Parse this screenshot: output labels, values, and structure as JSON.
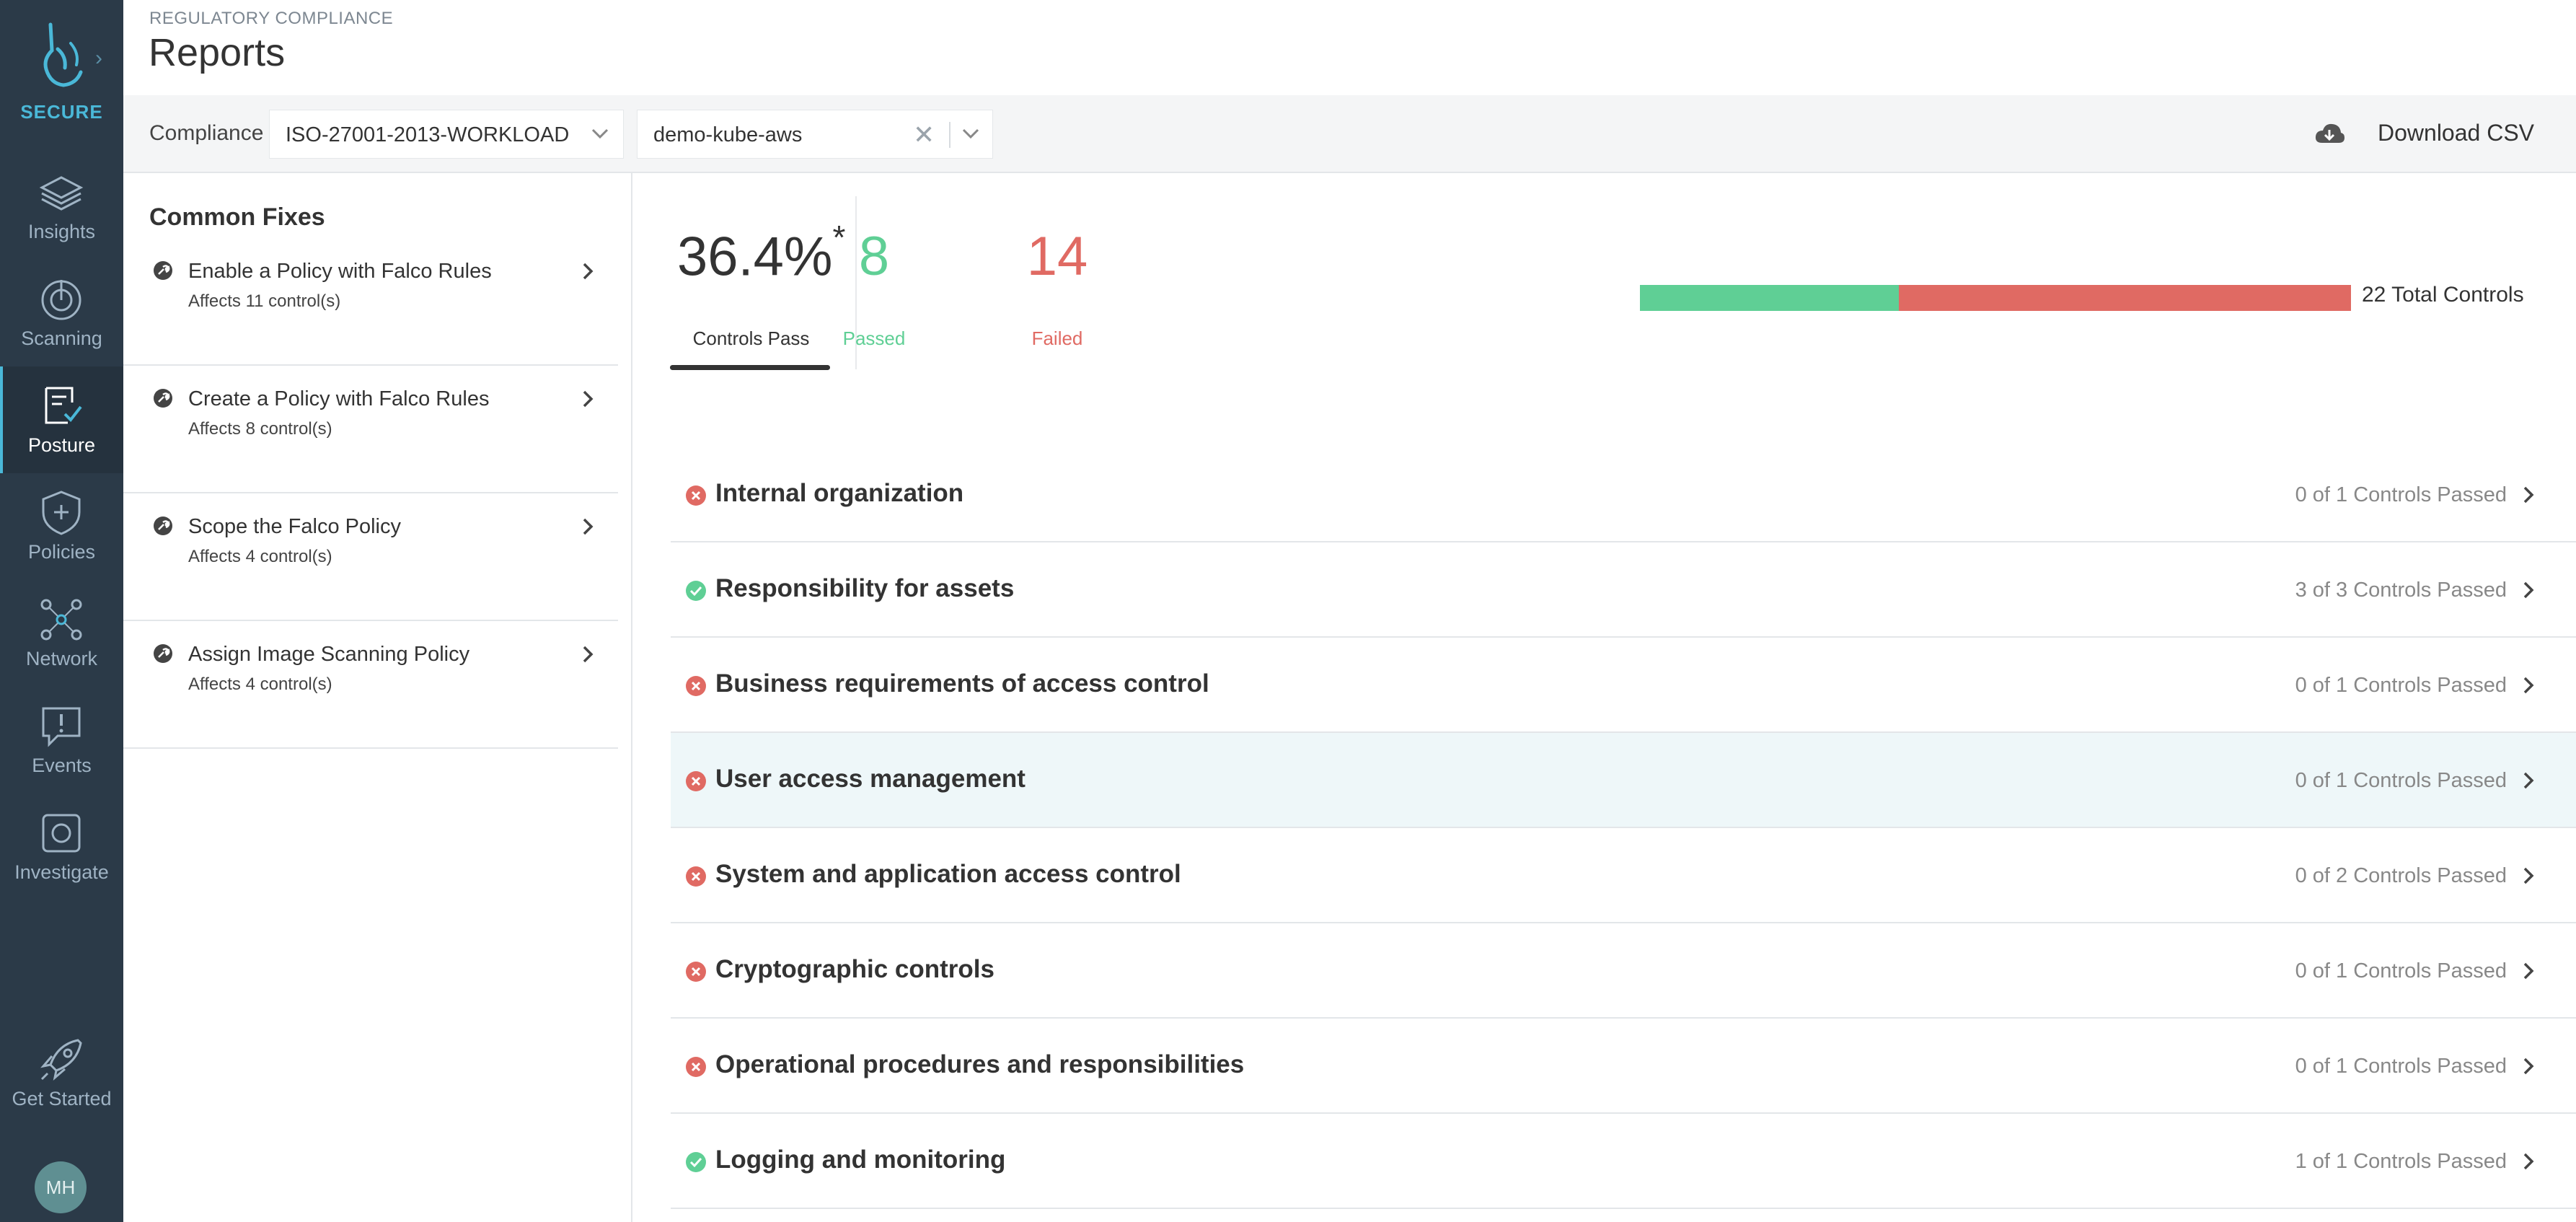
{
  "brand": {
    "label": "SECURE"
  },
  "nav": [
    {
      "label": "Insights",
      "icon": "layers-icon"
    },
    {
      "label": "Scanning",
      "icon": "scan-gauge-icon"
    },
    {
      "label": "Posture",
      "icon": "clipboard-check-icon",
      "active": true
    },
    {
      "label": "Policies",
      "icon": "shield-plus-icon"
    },
    {
      "label": "Network",
      "icon": "network-nodes-icon"
    },
    {
      "label": "Events",
      "icon": "chat-alert-icon"
    },
    {
      "label": "Investigate",
      "icon": "capture-icon"
    },
    {
      "label": "Get Started",
      "icon": "rocket-icon"
    }
  ],
  "user": {
    "initials": "MH"
  },
  "header": {
    "eyebrow": "REGULATORY COMPLIANCE",
    "title": "Reports"
  },
  "filters": {
    "label": "Compliance",
    "standard": "ISO-27001-2013-WORKLOAD",
    "cluster": "demo-kube-aws",
    "clear_symbol": "✕",
    "download_label": "Download CSV"
  },
  "common_fixes": {
    "title": "Common Fixes",
    "items": [
      {
        "title": "Enable a Policy with Falco Rules",
        "subtitle": "Affects 11 control(s)"
      },
      {
        "title": "Create a Policy with Falco Rules",
        "subtitle": "Affects 8 control(s)"
      },
      {
        "title": "Scope the Falco Policy",
        "subtitle": "Affects 4 control(s)"
      },
      {
        "title": "Assign Image Scanning Policy",
        "subtitle": "Affects 4 control(s)"
      }
    ]
  },
  "summary": {
    "pass_percent": "36.4%",
    "asterisk": "*",
    "pass_label": "Controls Pass",
    "passed": 8,
    "passed_label": "Passed",
    "failed": 14,
    "failed_label": "Failed",
    "total_label": "22 Total Controls",
    "pass_fraction": 0.364
  },
  "colors": {
    "pass": "#5fcf95",
    "fail": "#e06a63",
    "accent": "#4ab8d8",
    "sidebar": "#2b3a48"
  },
  "sections": [
    {
      "name": "Internal organization",
      "status": "fail",
      "count": "0 of 1 Controls Passed"
    },
    {
      "name": "Responsibility for assets",
      "status": "pass",
      "count": "3 of 3 Controls Passed"
    },
    {
      "name": "Business requirements of access control",
      "status": "fail",
      "count": "0 of 1 Controls Passed"
    },
    {
      "name": "User access management",
      "status": "fail",
      "count": "0 of 1 Controls Passed",
      "highlighted": true
    },
    {
      "name": "System and application access control",
      "status": "fail",
      "count": "0 of 2 Controls Passed"
    },
    {
      "name": "Cryptographic controls",
      "status": "fail",
      "count": "0 of 1 Controls Passed"
    },
    {
      "name": "Operational procedures and responsibilities",
      "status": "fail",
      "count": "0 of 1 Controls Passed"
    },
    {
      "name": "Logging and monitoring",
      "status": "pass",
      "count": "1 of 1 Controls Passed"
    }
  ]
}
